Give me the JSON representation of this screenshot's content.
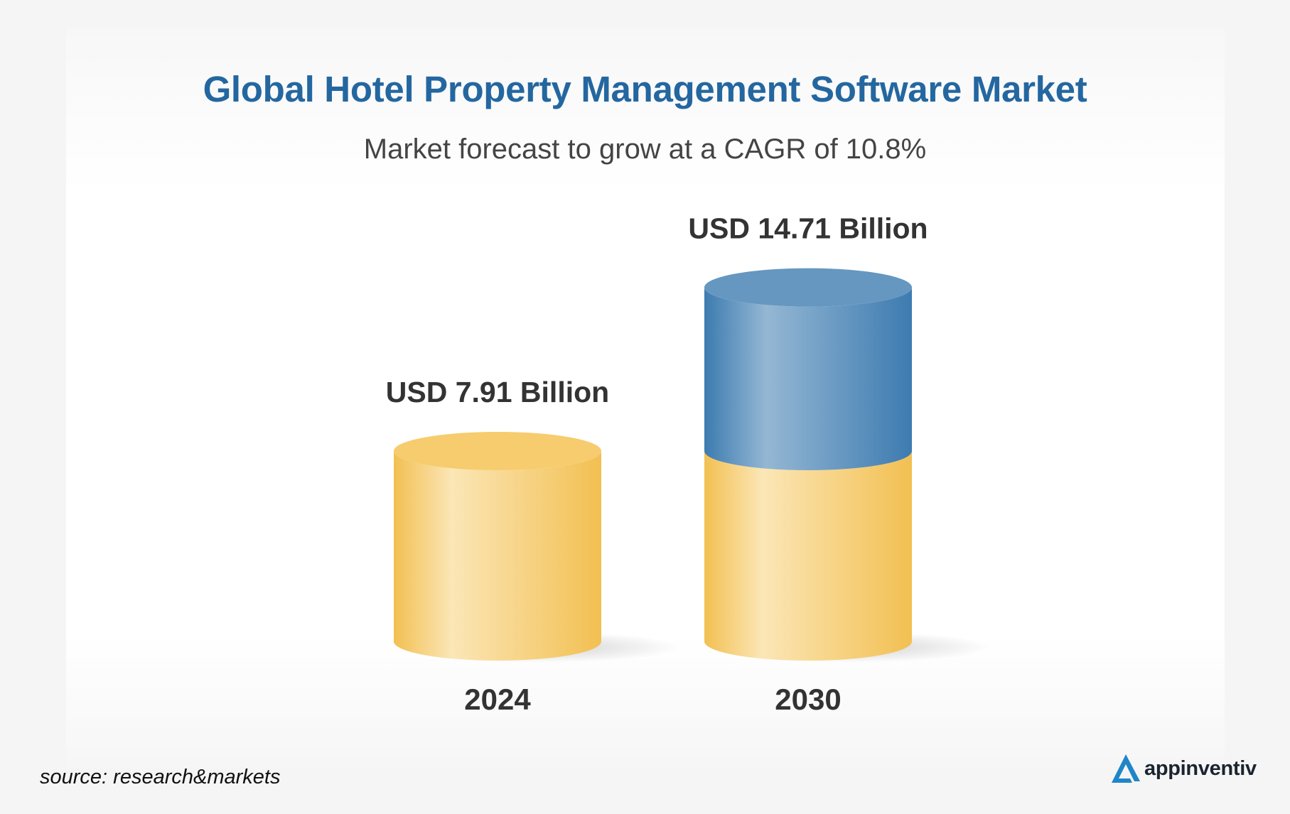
{
  "chart_data": {
    "type": "bar",
    "title": "Global Hotel Property Management Software Market",
    "subtitle": "Market forecast to grow at a CAGR of 10.8%",
    "categories": [
      "2024",
      "2030"
    ],
    "values": [
      7.91,
      14.71
    ],
    "value_labels": [
      "USD 7.91 Billion",
      "USD 14.71 Billion"
    ],
    "unit": "USD Billion",
    "style": "3d-cylinder",
    "grid": false,
    "colors": {
      "base": "#f2c052",
      "base_highlight": "#fbe6b6",
      "growth": "#3d7bb0",
      "growth_highlight": "#94b7d3"
    }
  },
  "footer": {
    "source": "source: research&markets",
    "brand": "appinventiv"
  }
}
